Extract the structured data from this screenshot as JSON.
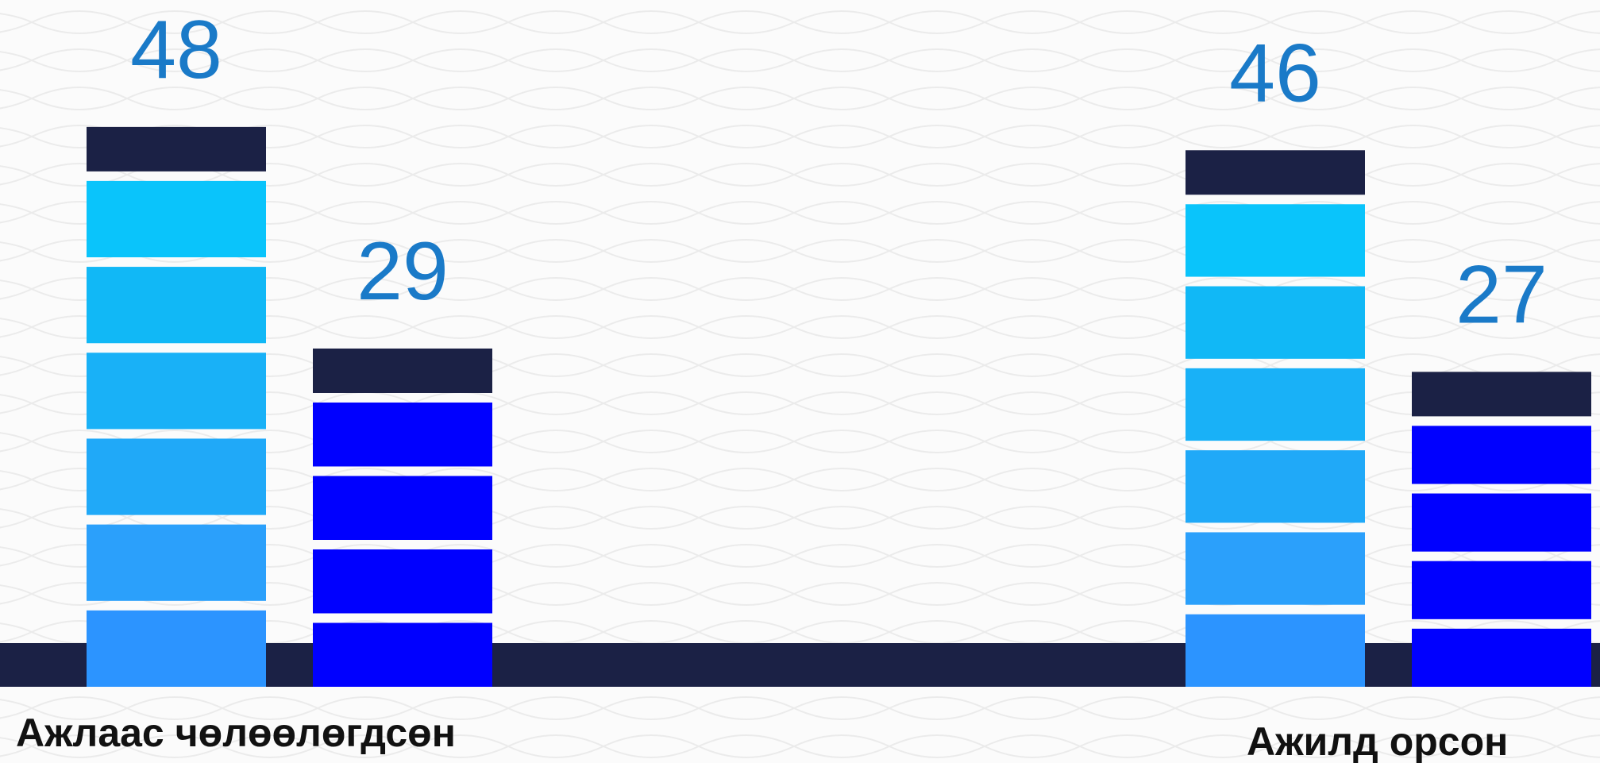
{
  "chart_data": {
    "type": "bar",
    "categories": [
      "Ажлаас чөлөөлөгдсөн",
      "Ажилд орсон"
    ],
    "series": [
      {
        "values": [
          48,
          46
        ]
      },
      {
        "values": [
          29,
          27
        ]
      }
    ],
    "data_labels": [
      [
        "48",
        "46"
      ],
      [
        "29",
        "27"
      ]
    ],
    "title": "",
    "xlabel": "",
    "ylabel": "",
    "ylim": [
      0,
      60
    ],
    "grid": false,
    "legend": "none"
  },
  "colors": {
    "baseline": "#1b2145",
    "cap": "#1b2145",
    "series_1_gradient": [
      "#2c94ff",
      "#2ba0fb",
      "#20a9f8",
      "#19b1f7",
      "#11b8f6",
      "#0ac4fb"
    ],
    "series_2": "#0000ff",
    "value_label": "#1a7ac8",
    "category_label": "#111111",
    "background": "#fbfbfb"
  }
}
